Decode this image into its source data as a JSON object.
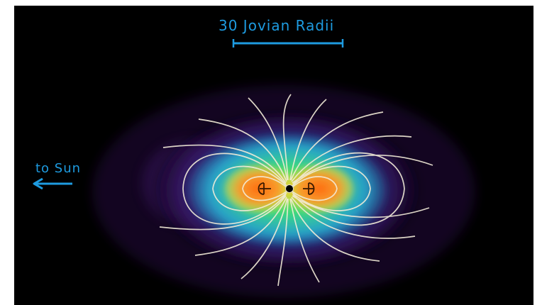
{
  "scale_bar": {
    "label": "30 Jovian Radii",
    "color": "#1e9be0"
  },
  "sun_direction": {
    "label": "to Sun",
    "arrow_icon": "left-arrow-icon",
    "color": "#1e9be0"
  },
  "image": {
    "background": "#000000",
    "field_line_color": "#f2ecd8",
    "palette": [
      "#000000",
      "#1a0a3a",
      "#3b1a6e",
      "#2a7fd6",
      "#28c8d8",
      "#3ee07a",
      "#c6e83a",
      "#ff9a2a",
      "#ff6a10"
    ],
    "planet_color": "#000000"
  }
}
